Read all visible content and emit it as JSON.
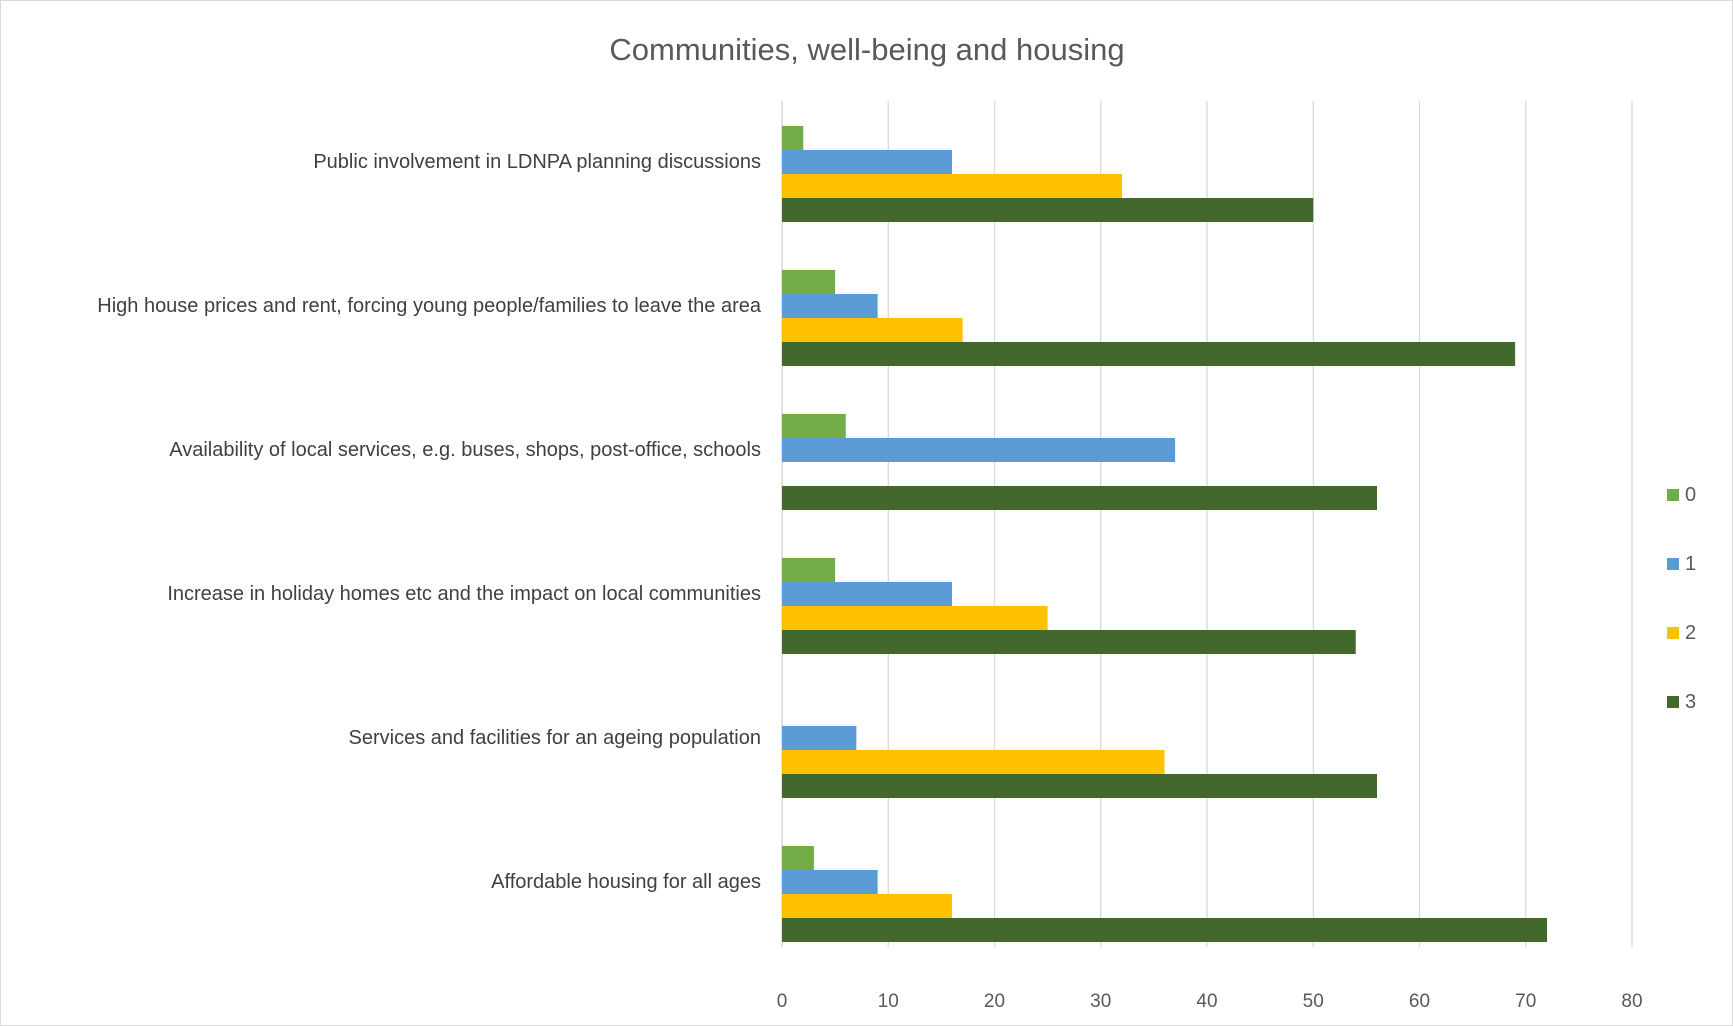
{
  "chart_data": {
    "type": "bar",
    "orientation": "horizontal",
    "title": "Communities, well-being and housing",
    "xlabel": "",
    "ylabel": "",
    "xlim": [
      0,
      80
    ],
    "ticks": [
      0,
      10,
      20,
      30,
      40,
      50,
      60,
      70,
      80
    ],
    "grid": true,
    "legend_position": "right",
    "categories": [
      "Public involvement in LDNPA planning discussions",
      "High house prices and rent, forcing young people/families to leave the area",
      "Availability of local services, e.g. buses, shops, post-office, schools",
      "Increase in holiday homes etc and the impact on local communities",
      "Services and facilities for an ageing population",
      "Affordable housing for all ages"
    ],
    "series": [
      {
        "name": "0",
        "color": "#70ad47",
        "values": [
          2,
          5,
          6,
          5,
          0,
          3
        ]
      },
      {
        "name": "1",
        "color": "#5b9bd5",
        "values": [
          16,
          9,
          37,
          16,
          7,
          9
        ]
      },
      {
        "name": "2",
        "color": "#ffc000",
        "values": [
          32,
          17,
          0,
          25,
          36,
          16
        ]
      },
      {
        "name": "3",
        "color": "#43682b",
        "values": [
          50,
          69,
          56,
          54,
          56,
          72
        ]
      }
    ]
  }
}
